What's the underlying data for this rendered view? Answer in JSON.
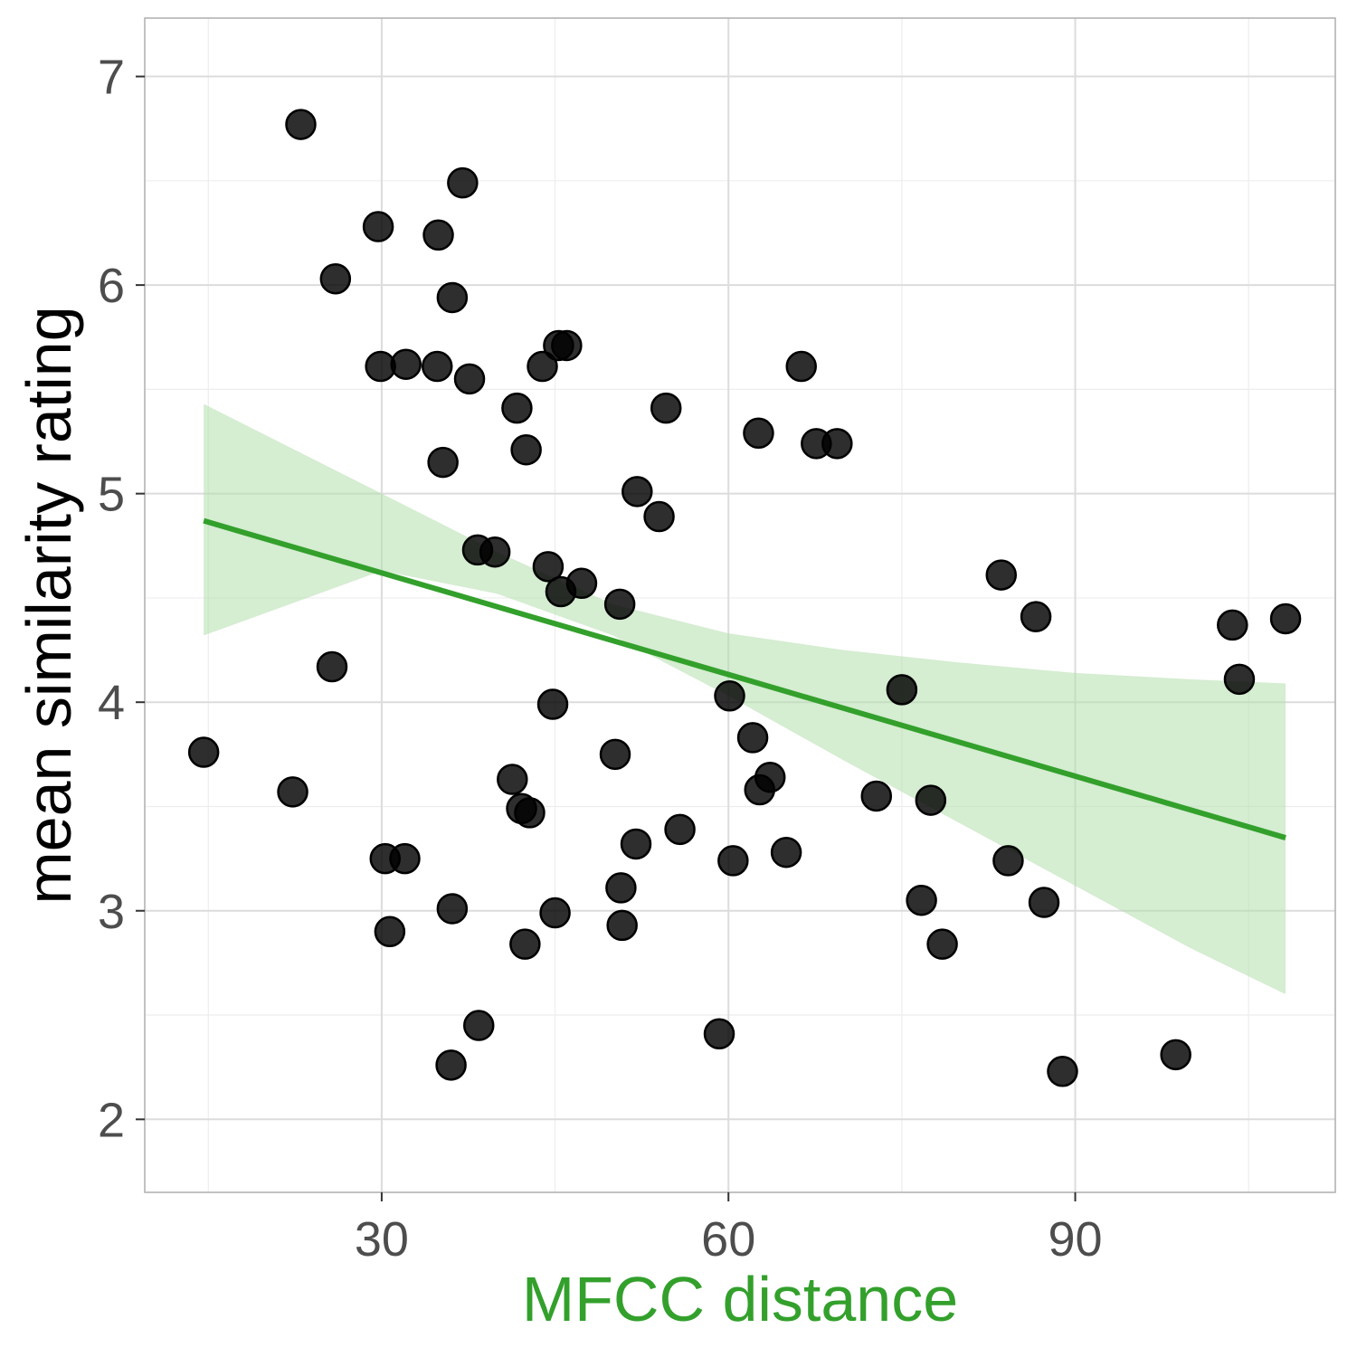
{
  "chart_data": {
    "type": "scatter",
    "xlabel": "MFCC distance",
    "ylabel": "mean similarity rating",
    "xlim": [
      9.5,
      112.5
    ],
    "ylim": [
      1.65,
      7.28
    ],
    "x_ticks": [
      30,
      60,
      90
    ],
    "x_tick_labels": [
      "30",
      "60",
      "90"
    ],
    "y_ticks": [
      2,
      3,
      4,
      5,
      6,
      7
    ],
    "y_tick_labels": [
      "2",
      "3",
      "4",
      "5",
      "6",
      "7"
    ],
    "grid": true,
    "legend": "none",
    "colors": {
      "points": "#000000",
      "trend_line": "#33a02c",
      "confidence_band": "#b2dfab",
      "xlabel": "#33a02c",
      "ylabel": "#000000",
      "grid_major": "#dcdcdc",
      "grid_minor": "#ededed",
      "panel_border": "#b3b3b3"
    },
    "trend_line": {
      "x": [
        14.6,
        108.2
      ],
      "y": [
        4.87,
        3.35
      ]
    },
    "confidence_band": {
      "x": [
        14.6,
        30,
        40,
        50,
        60,
        70,
        80,
        90,
        100,
        108.2
      ],
      "lower": [
        4.32,
        4.63,
        4.52,
        4.32,
        4.03,
        3.72,
        3.42,
        3.12,
        2.82,
        2.6
      ],
      "upper": [
        5.43,
        5.0,
        4.72,
        4.47,
        4.33,
        4.25,
        4.19,
        4.14,
        4.11,
        4.09
      ]
    },
    "points": [
      {
        "x": 14.6,
        "y": 3.76
      },
      {
        "x": 22.3,
        "y": 3.57
      },
      {
        "x": 23.0,
        "y": 6.77
      },
      {
        "x": 25.7,
        "y": 4.17
      },
      {
        "x": 26.0,
        "y": 6.03
      },
      {
        "x": 29.7,
        "y": 6.28
      },
      {
        "x": 29.9,
        "y": 5.61
      },
      {
        "x": 30.3,
        "y": 3.25
      },
      {
        "x": 30.7,
        "y": 2.9
      },
      {
        "x": 32.0,
        "y": 3.25
      },
      {
        "x": 32.1,
        "y": 5.62
      },
      {
        "x": 34.8,
        "y": 5.61
      },
      {
        "x": 34.9,
        "y": 6.24
      },
      {
        "x": 35.3,
        "y": 5.15
      },
      {
        "x": 36.1,
        "y": 5.94
      },
      {
        "x": 36.1,
        "y": 3.01
      },
      {
        "x": 36.0,
        "y": 2.26
      },
      {
        "x": 37.0,
        "y": 6.49
      },
      {
        "x": 37.6,
        "y": 5.55
      },
      {
        "x": 38.3,
        "y": 4.73
      },
      {
        "x": 38.4,
        "y": 2.45
      },
      {
        "x": 39.8,
        "y": 4.72
      },
      {
        "x": 41.3,
        "y": 3.63
      },
      {
        "x": 41.7,
        "y": 5.41
      },
      {
        "x": 42.1,
        "y": 3.49
      },
      {
        "x": 42.4,
        "y": 2.84
      },
      {
        "x": 42.5,
        "y": 5.21
      },
      {
        "x": 42.8,
        "y": 3.47
      },
      {
        "x": 43.9,
        "y": 5.61
      },
      {
        "x": 44.4,
        "y": 4.65
      },
      {
        "x": 44.8,
        "y": 3.99
      },
      {
        "x": 45.0,
        "y": 2.99
      },
      {
        "x": 45.3,
        "y": 5.71
      },
      {
        "x": 45.5,
        "y": 4.53
      },
      {
        "x": 46.0,
        "y": 5.71
      },
      {
        "x": 47.3,
        "y": 4.57
      },
      {
        "x": 50.2,
        "y": 3.75
      },
      {
        "x": 50.6,
        "y": 4.47
      },
      {
        "x": 50.7,
        "y": 3.11
      },
      {
        "x": 50.8,
        "y": 2.93
      },
      {
        "x": 52.0,
        "y": 3.32
      },
      {
        "x": 52.1,
        "y": 5.01
      },
      {
        "x": 54.0,
        "y": 4.89
      },
      {
        "x": 54.6,
        "y": 5.41
      },
      {
        "x": 55.8,
        "y": 3.39
      },
      {
        "x": 59.2,
        "y": 2.41
      },
      {
        "x": 60.1,
        "y": 4.03
      },
      {
        "x": 60.4,
        "y": 3.24
      },
      {
        "x": 62.1,
        "y": 3.83
      },
      {
        "x": 62.6,
        "y": 5.29
      },
      {
        "x": 62.7,
        "y": 3.58
      },
      {
        "x": 63.6,
        "y": 3.64
      },
      {
        "x": 65.0,
        "y": 3.28
      },
      {
        "x": 66.3,
        "y": 5.61
      },
      {
        "x": 67.6,
        "y": 5.24
      },
      {
        "x": 69.4,
        "y": 5.24
      },
      {
        "x": 72.8,
        "y": 3.55
      },
      {
        "x": 75.0,
        "y": 4.06
      },
      {
        "x": 76.7,
        "y": 3.05
      },
      {
        "x": 77.5,
        "y": 3.53
      },
      {
        "x": 78.5,
        "y": 2.84
      },
      {
        "x": 83.6,
        "y": 4.61
      },
      {
        "x": 84.2,
        "y": 3.24
      },
      {
        "x": 86.6,
        "y": 4.41
      },
      {
        "x": 87.3,
        "y": 3.04
      },
      {
        "x": 88.9,
        "y": 2.23
      },
      {
        "x": 98.7,
        "y": 2.31
      },
      {
        "x": 103.6,
        "y": 4.37
      },
      {
        "x": 104.2,
        "y": 4.11
      },
      {
        "x": 108.2,
        "y": 4.4
      }
    ]
  }
}
